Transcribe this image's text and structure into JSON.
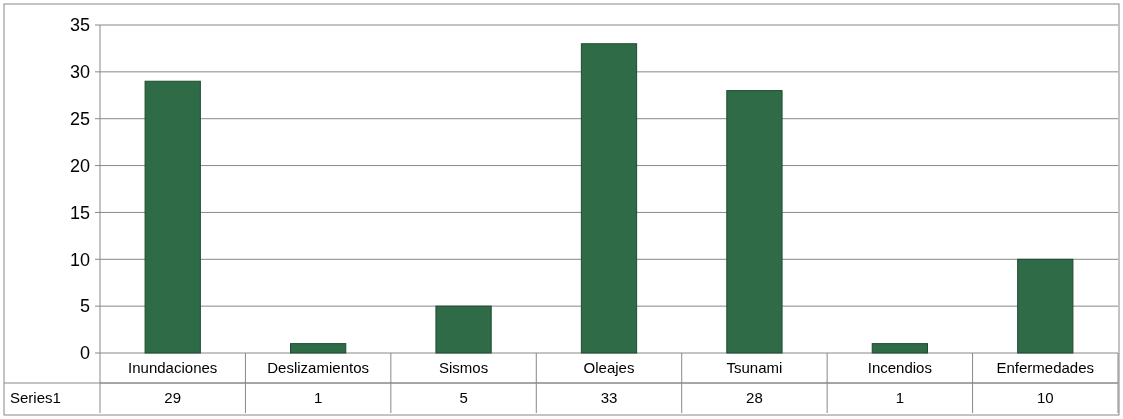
{
  "chart_data": {
    "type": "bar",
    "categories": [
      "Inundaciones",
      "Deslizamientos",
      "Sismos",
      "Oleajes",
      "Tsunami",
      "Incendios",
      "Enfermedades"
    ],
    "series": [
      {
        "name": "Series1",
        "color": "#2f6b46",
        "values": [
          29,
          1,
          5,
          33,
          28,
          1,
          10
        ]
      }
    ],
    "ylim": [
      0,
      35
    ],
    "yticks": [
      0,
      5,
      10,
      15,
      20,
      25,
      30,
      35
    ],
    "grid": "y",
    "data_labels": true
  }
}
